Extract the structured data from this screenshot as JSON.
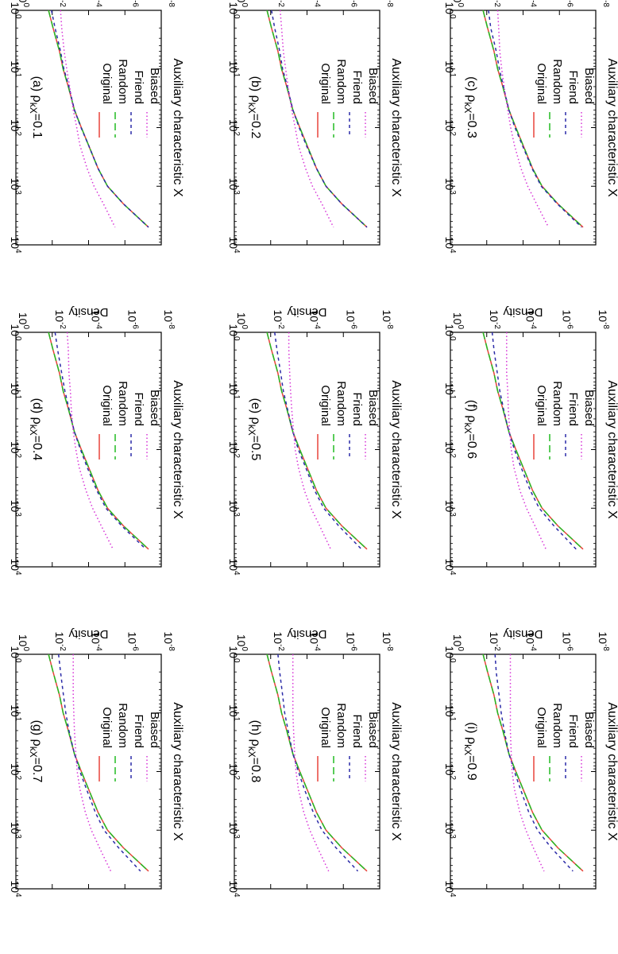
{
  "figure": {
    "x_label": "Auxiliary characteristic X",
    "y_label": "Density",
    "x_ticks": [
      {
        "base": "10",
        "exp": "0"
      },
      {
        "base": "10",
        "exp": "1"
      },
      {
        "base": "10",
        "exp": "2"
      },
      {
        "base": "10",
        "exp": "3"
      },
      {
        "base": "10",
        "exp": "4"
      }
    ],
    "y_ticks": [
      {
        "base": "10",
        "exp": "0"
      },
      {
        "base": "10",
        "exp": "-2"
      },
      {
        "base": "10",
        "exp": "-4"
      },
      {
        "base": "10",
        "exp": "-6"
      },
      {
        "base": "10",
        "exp": "-8"
      }
    ],
    "legend": [
      "Original",
      "Random",
      "Friend",
      "Biased"
    ],
    "series_styles": [
      {
        "name": "Original",
        "color": "#e8433a",
        "dash": "none"
      },
      {
        "name": "Random",
        "color": "#22bb22",
        "dash": "9 5"
      },
      {
        "name": "Friend",
        "color": "#2c2ca8",
        "dash": "4 4"
      },
      {
        "name": "Biased",
        "color": "#d733d7",
        "dash": "1.5 3"
      }
    ]
  },
  "chart_data": [
    {
      "type": "line",
      "title_prefix": "(a)",
      "title_symbol": "ρ",
      "title_sub": "kX",
      "title_value": "=0.1",
      "xlabel": "Auxiliary characteristic X",
      "ylabel": "Density",
      "x_scale": "log",
      "y_scale": "log",
      "xlim": [
        1,
        10000
      ],
      "ylim": [
        1e-08,
        1
      ],
      "x": [
        1,
        2,
        5,
        10,
        20,
        50,
        100,
        200,
        500,
        1000,
        2000,
        5000
      ],
      "series": [
        {
          "name": "Original",
          "values": [
            0.016,
            0.009,
            0.004,
            0.0025,
            0.0013,
            0.0006,
            0.00025,
            0.0001,
            3e-05,
            9e-06,
            1.2e-06,
            5e-08
          ]
        },
        {
          "name": "Random",
          "values": [
            0.016,
            0.009,
            0.004,
            0.0025,
            0.0013,
            0.0006,
            0.00025,
            0.0001,
            3e-05,
            9e-06,
            1.2e-06,
            5e-08
          ]
        },
        {
          "name": "Friend",
          "values": [
            0.011,
            0.007,
            0.0035,
            0.0023,
            0.0012,
            0.0006,
            0.00026,
            0.0001,
            3e-05,
            9e-06,
            1.2e-06,
            5e-08
          ]
        },
        {
          "name": "Biased",
          "values": [
            0.0035,
            0.003,
            0.0022,
            0.0016,
            0.0011,
            0.0007,
            0.00045,
            0.0003,
            0.00012,
            5e-05,
            1.5e-05,
            3.5e-06
          ]
        }
      ]
    },
    {
      "type": "line",
      "title_prefix": "(b)",
      "title_symbol": "ρ",
      "title_sub": "kX",
      "title_value": "=0.2",
      "xlabel": "Auxiliary characteristic X",
      "ylabel": "Density",
      "x_scale": "log",
      "y_scale": "log",
      "xlim": [
        1,
        10000
      ],
      "ylim": [
        1e-08,
        1
      ],
      "x": [
        1,
        2,
        5,
        10,
        20,
        50,
        100,
        200,
        500,
        1000,
        2000,
        5000
      ],
      "series": [
        {
          "name": "Original",
          "values": [
            0.016,
            0.009,
            0.004,
            0.0025,
            0.0013,
            0.0006,
            0.00025,
            0.0001,
            3e-05,
            9e-06,
            1.2e-06,
            5e-08
          ]
        },
        {
          "name": "Random",
          "values": [
            0.016,
            0.009,
            0.004,
            0.0025,
            0.0013,
            0.0006,
            0.00025,
            0.0001,
            3e-05,
            9e-06,
            1.2e-06,
            5e-08
          ]
        },
        {
          "name": "Friend",
          "values": [
            0.009,
            0.006,
            0.0032,
            0.0022,
            0.0012,
            0.0006,
            0.00027,
            0.00011,
            3e-05,
            9e-06,
            1.2e-06,
            5e-08
          ]
        },
        {
          "name": "Biased",
          "values": [
            0.003,
            0.0025,
            0.002,
            0.0015,
            0.0011,
            0.0007,
            0.00045,
            0.0003,
            0.00012,
            5e-05,
            1.5e-05,
            3.5e-06
          ]
        }
      ]
    },
    {
      "type": "line",
      "title_prefix": "(c)",
      "title_symbol": "ρ",
      "title_sub": "kX",
      "title_value": "=0.3",
      "xlabel": "Auxiliary characteristic X",
      "ylabel": "Density",
      "x_scale": "log",
      "y_scale": "log",
      "xlim": [
        1,
        10000
      ],
      "ylim": [
        1e-08,
        1
      ],
      "x": [
        1,
        2,
        5,
        10,
        20,
        50,
        100,
        200,
        500,
        1000,
        2000,
        5000
      ],
      "series": [
        {
          "name": "Original",
          "values": [
            0.016,
            0.009,
            0.004,
            0.0025,
            0.0013,
            0.0006,
            0.00025,
            0.0001,
            3e-05,
            9e-06,
            1.2e-06,
            5e-08
          ]
        },
        {
          "name": "Random",
          "values": [
            0.016,
            0.009,
            0.004,
            0.0025,
            0.0013,
            0.0006,
            0.00025,
            0.0001,
            3e-05,
            9e-06,
            1.2e-06,
            5e-08
          ]
        },
        {
          "name": "Friend",
          "values": [
            0.008,
            0.006,
            0.003,
            0.002,
            0.0012,
            0.0006,
            0.00028,
            0.00011,
            3.2e-05,
            1e-05,
            1.3e-06,
            6e-08
          ]
        },
        {
          "name": "Biased",
          "values": [
            0.0025,
            0.0022,
            0.0019,
            0.0015,
            0.0011,
            0.0007,
            0.00048,
            0.0003,
            0.00013,
            5.5e-05,
            1.8e-05,
            4e-06
          ]
        }
      ]
    },
    {
      "type": "line",
      "title_prefix": "(d)",
      "title_symbol": "ρ",
      "title_sub": "kX",
      "title_value": "=0.4",
      "xlabel": "Auxiliary characteristic X",
      "ylabel": "Density",
      "x_scale": "log",
      "y_scale": "log",
      "xlim": [
        1,
        10000
      ],
      "ylim": [
        1e-08,
        1
      ],
      "x": [
        1,
        2,
        5,
        10,
        20,
        50,
        100,
        200,
        500,
        1000,
        2000,
        5000
      ],
      "series": [
        {
          "name": "Original",
          "values": [
            0.016,
            0.009,
            0.004,
            0.0025,
            0.0013,
            0.0006,
            0.00025,
            0.0001,
            3e-05,
            9e-06,
            1.2e-06,
            5e-08
          ]
        },
        {
          "name": "Random",
          "values": [
            0.016,
            0.009,
            0.004,
            0.0025,
            0.0013,
            0.0006,
            0.00025,
            0.0001,
            3e-05,
            9e-06,
            1.2e-06,
            5e-08
          ]
        },
        {
          "name": "Friend",
          "values": [
            0.007,
            0.005,
            0.003,
            0.002,
            0.0012,
            0.0006,
            0.00028,
            0.00012,
            3.5e-05,
            1.1e-05,
            1.5e-06,
            7e-08
          ]
        },
        {
          "name": "Biased",
          "values": [
            0.0015,
            0.0013,
            0.0012,
            0.001,
            0.0009,
            0.0007,
            0.0005,
            0.00033,
            0.00014,
            6e-05,
            2e-05,
            4.5e-06
          ]
        }
      ]
    },
    {
      "type": "line",
      "title_prefix": "(e)",
      "title_symbol": "ρ",
      "title_sub": "kX",
      "title_value": "=0.5",
      "xlabel": "Auxiliary characteristic X",
      "ylabel": "Density",
      "x_scale": "log",
      "y_scale": "log",
      "xlim": [
        1,
        10000
      ],
      "ylim": [
        1e-08,
        1
      ],
      "x": [
        1,
        2,
        5,
        10,
        20,
        50,
        100,
        200,
        500,
        1000,
        2000,
        5000
      ],
      "series": [
        {
          "name": "Original",
          "values": [
            0.016,
            0.009,
            0.004,
            0.0025,
            0.0013,
            0.0006,
            0.00025,
            0.0001,
            3e-05,
            9e-06,
            1.2e-06,
            5e-08
          ]
        },
        {
          "name": "Random",
          "values": [
            0.016,
            0.009,
            0.004,
            0.0025,
            0.0013,
            0.0006,
            0.00025,
            0.0001,
            3e-05,
            9e-06,
            1.2e-06,
            5e-08
          ]
        },
        {
          "name": "Friend",
          "values": [
            0.006,
            0.0045,
            0.0028,
            0.002,
            0.0012,
            0.0006,
            0.0003,
            0.00012,
            3.8e-05,
            1.2e-05,
            1.8e-06,
            1e-07
          ]
        },
        {
          "name": "Biased",
          "values": [
            0.001,
            0.001,
            0.0009,
            0.0008,
            0.0007,
            0.00055,
            0.00045,
            0.0003,
            0.00014,
            6e-05,
            2e-05,
            5e-06
          ]
        }
      ]
    },
    {
      "type": "line",
      "title_prefix": "(f)",
      "title_symbol": "ρ",
      "title_sub": "kX",
      "title_value": "=0.6",
      "xlabel": "Auxiliary characteristic X",
      "ylabel": "Density",
      "x_scale": "log",
      "y_scale": "log",
      "xlim": [
        1,
        10000
      ],
      "ylim": [
        1e-08,
        1
      ],
      "x": [
        1,
        2,
        5,
        10,
        20,
        50,
        100,
        200,
        500,
        1000,
        2000,
        5000
      ],
      "series": [
        {
          "name": "Original",
          "values": [
            0.016,
            0.009,
            0.004,
            0.0025,
            0.0013,
            0.0006,
            0.00025,
            0.0001,
            3e-05,
            9e-06,
            1.2e-06,
            5e-08
          ]
        },
        {
          "name": "Random",
          "values": [
            0.016,
            0.009,
            0.004,
            0.0025,
            0.0013,
            0.0006,
            0.00025,
            0.0001,
            3e-05,
            9e-06,
            1.2e-06,
            5e-08
          ]
        },
        {
          "name": "Friend",
          "values": [
            0.005,
            0.004,
            0.0026,
            0.0019,
            0.0012,
            0.0006,
            0.0003,
            0.00013,
            4e-05,
            1.3e-05,
            2e-06,
            1.2e-07
          ]
        },
        {
          "name": "Biased",
          "values": [
            0.0008,
            0.0008,
            0.0008,
            0.0007,
            0.00065,
            0.00055,
            0.00045,
            0.00032,
            0.00015,
            6.5e-05,
            2.2e-05,
            5.5e-06
          ]
        }
      ]
    },
    {
      "type": "line",
      "title_prefix": "(g)",
      "title_symbol": "ρ",
      "title_sub": "kX",
      "title_value": "=0.7",
      "xlabel": "Auxiliary characteristic X",
      "ylabel": "Density",
      "x_scale": "log",
      "y_scale": "log",
      "xlim": [
        1,
        10000
      ],
      "ylim": [
        1e-08,
        1
      ],
      "x": [
        1,
        2,
        5,
        10,
        20,
        50,
        100,
        200,
        500,
        1000,
        2000,
        5000
      ],
      "series": [
        {
          "name": "Original",
          "values": [
            0.016,
            0.009,
            0.004,
            0.0025,
            0.0013,
            0.0006,
            0.00025,
            0.0001,
            3e-05,
            9e-06,
            1.2e-06,
            5e-08
          ]
        },
        {
          "name": "Random",
          "values": [
            0.016,
            0.009,
            0.004,
            0.0025,
            0.0013,
            0.0006,
            0.00025,
            0.0001,
            3e-05,
            9e-06,
            1.2e-06,
            5e-08
          ]
        },
        {
          "name": "Friend",
          "values": [
            0.0045,
            0.0035,
            0.0024,
            0.0018,
            0.0012,
            0.0006,
            0.0003,
            0.00013,
            4.2e-05,
            1.4e-05,
            2.2e-06,
            1.4e-07
          ]
        },
        {
          "name": "Biased",
          "values": [
            0.0007,
            0.0007,
            0.0007,
            0.00065,
            0.0006,
            0.0005,
            0.00042,
            0.0003,
            0.00015,
            7e-05,
            2.5e-05,
            6e-06
          ]
        }
      ]
    },
    {
      "type": "line",
      "title_prefix": "(h)",
      "title_symbol": "ρ",
      "title_sub": "kX",
      "title_value": "=0.8",
      "xlabel": "Auxiliary characteristic X",
      "ylabel": "Density",
      "x_scale": "log",
      "y_scale": "log",
      "xlim": [
        1,
        10000
      ],
      "ylim": [
        1e-08,
        1
      ],
      "x": [
        1,
        2,
        5,
        10,
        20,
        50,
        100,
        200,
        500,
        1000,
        2000,
        5000
      ],
      "series": [
        {
          "name": "Original",
          "values": [
            0.016,
            0.009,
            0.004,
            0.0025,
            0.0013,
            0.0006,
            0.00025,
            0.0001,
            3e-05,
            9e-06,
            1.2e-06,
            5e-08
          ]
        },
        {
          "name": "Random",
          "values": [
            0.016,
            0.009,
            0.004,
            0.0025,
            0.0013,
            0.0006,
            0.00025,
            0.0001,
            3e-05,
            9e-06,
            1.2e-06,
            5e-08
          ]
        },
        {
          "name": "Friend",
          "values": [
            0.004,
            0.0032,
            0.0022,
            0.0017,
            0.0011,
            0.0006,
            0.0003,
            0.00014,
            4.5e-05,
            1.5e-05,
            2.5e-06,
            1.6e-07
          ]
        },
        {
          "name": "Biased",
          "values": [
            0.0006,
            0.0006,
            0.0006,
            0.0006,
            0.00055,
            0.00048,
            0.0004,
            0.0003,
            0.00015,
            7e-05,
            2.6e-05,
            6.5e-06
          ]
        }
      ]
    },
    {
      "type": "line",
      "title_prefix": "(i)",
      "title_symbol": "ρ",
      "title_sub": "kX",
      "title_value": "=0.9",
      "xlabel": "Auxiliary characteristic X",
      "ylabel": "Density",
      "x_scale": "log",
      "y_scale": "log",
      "xlim": [
        1,
        10000
      ],
      "ylim": [
        1e-08,
        1
      ],
      "x": [
        1,
        2,
        5,
        10,
        20,
        50,
        100,
        200,
        500,
        1000,
        2000,
        5000
      ],
      "series": [
        {
          "name": "Original",
          "values": [
            0.016,
            0.009,
            0.004,
            0.0025,
            0.0013,
            0.0006,
            0.00025,
            0.0001,
            3e-05,
            9e-06,
            1.2e-06,
            5e-08
          ]
        },
        {
          "name": "Random",
          "values": [
            0.016,
            0.009,
            0.004,
            0.0025,
            0.0013,
            0.0006,
            0.00025,
            0.0001,
            3e-05,
            9e-06,
            1.2e-06,
            5e-08
          ]
        },
        {
          "name": "Friend",
          "values": [
            0.0035,
            0.003,
            0.0021,
            0.0016,
            0.0011,
            0.0006,
            0.0003,
            0.00014,
            4.8e-05,
            1.6e-05,
            2.8e-06,
            1.8e-07
          ]
        },
        {
          "name": "Biased",
          "values": [
            0.0005,
            0.0005,
            0.0005,
            0.0005,
            0.0005,
            0.00045,
            0.0004,
            0.0003,
            0.00015,
            7e-05,
            2.7e-05,
            7e-06
          ]
        }
      ]
    }
  ]
}
